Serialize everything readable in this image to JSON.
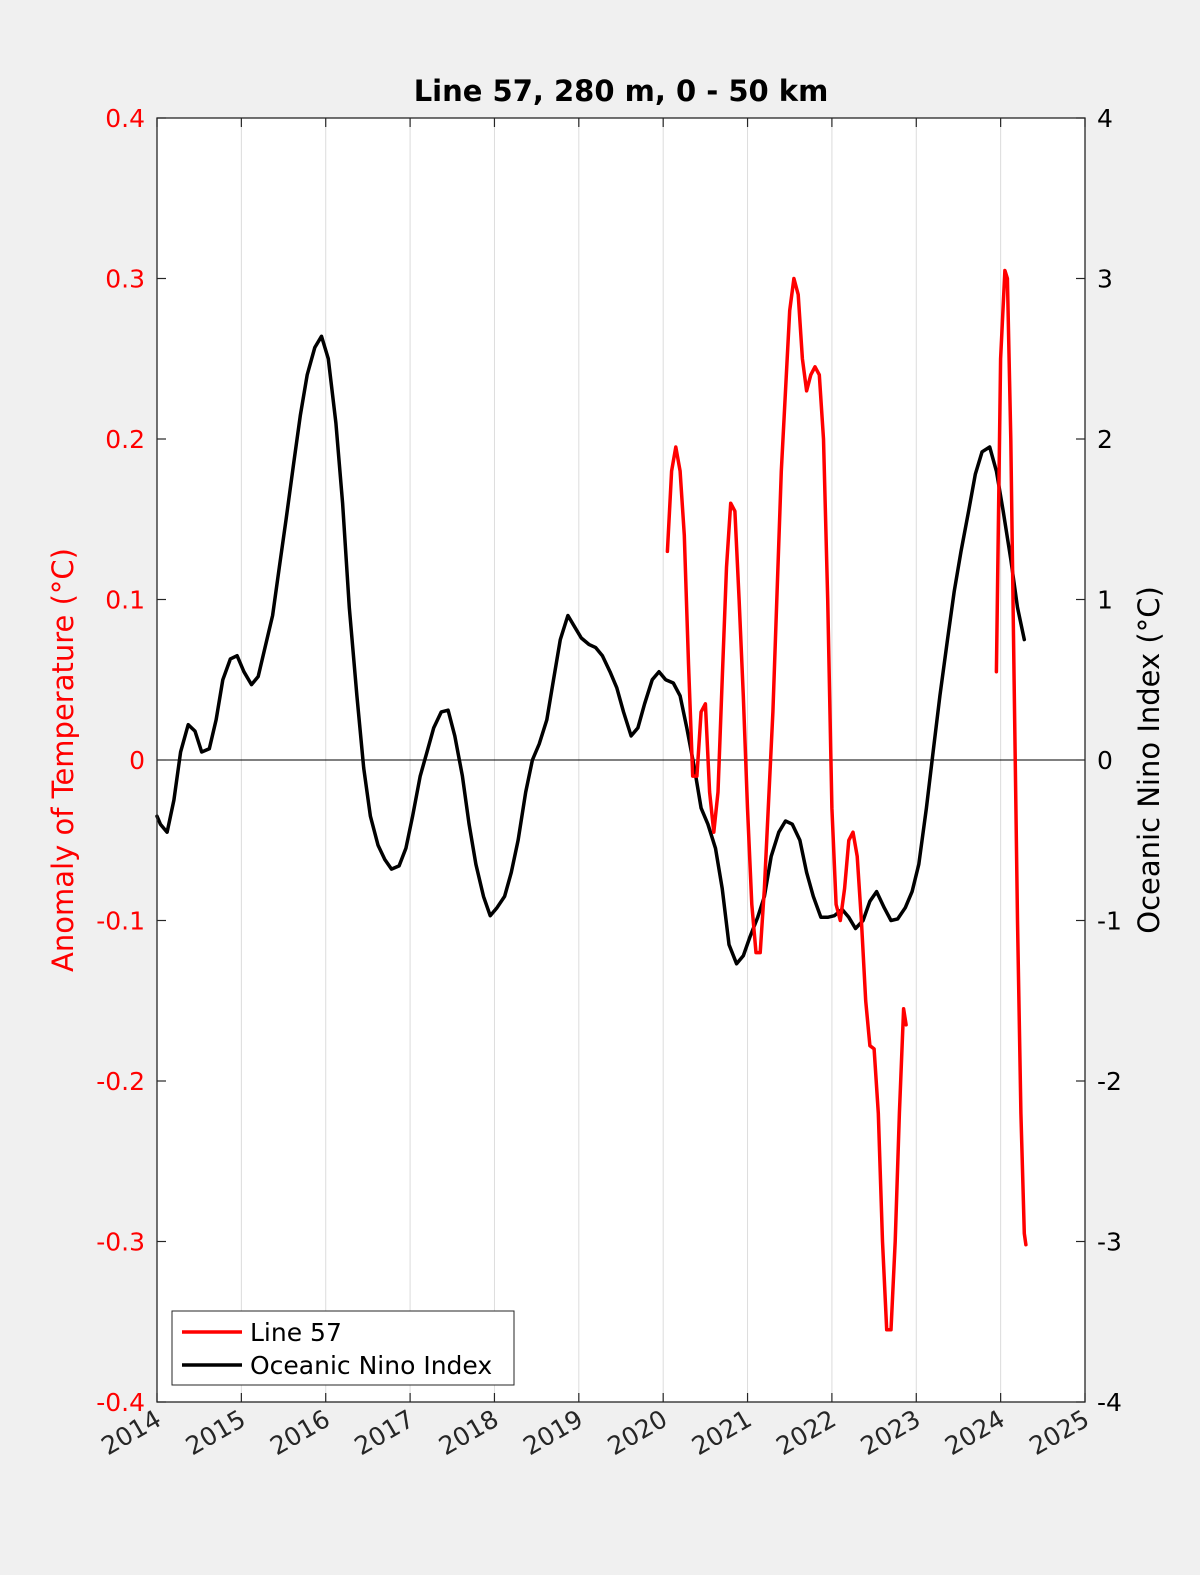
{
  "chart_data": {
    "type": "line",
    "title": "Line 57, 280 m, 0 - 50 km",
    "x_ticks": [
      "2014",
      "2015",
      "2016",
      "2017",
      "2018",
      "2019",
      "2020",
      "2021",
      "2022",
      "2023",
      "2024",
      "2025"
    ],
    "xlim": [
      2014,
      2025
    ],
    "y_left": {
      "label": "Anomaly of Temperature (°C)",
      "ticks": [
        "-0.4",
        "-0.3",
        "-0.2",
        "-0.1",
        "0",
        "0.1",
        "0.2",
        "0.3",
        "0.4"
      ],
      "ylim": [
        -0.4,
        0.4
      ],
      "color": "#ff0000"
    },
    "y_right": {
      "label": "Oceanic Nino Index (°C)",
      "ticks": [
        "-4",
        "-3",
        "-2",
        "-1",
        "0",
        "1",
        "2",
        "3",
        "4"
      ],
      "ylim": [
        -4,
        4
      ],
      "color": "#000000"
    },
    "grid": "vertical",
    "zero_line": true,
    "legend_position": "bottom-left",
    "series": [
      {
        "name": "Line 57",
        "axis": "left",
        "color": "#ff0000",
        "segments": [
          [
            [
              2020.05,
              0.13
            ],
            [
              2020.1,
              0.18
            ],
            [
              2020.15,
              0.195
            ],
            [
              2020.2,
              0.18
            ],
            [
              2020.25,
              0.14
            ],
            [
              2020.3,
              0.06
            ],
            [
              2020.35,
              -0.01
            ],
            [
              2020.4,
              -0.01
            ],
            [
              2020.45,
              0.03
            ],
            [
              2020.5,
              0.035
            ],
            [
              2020.55,
              -0.02
            ],
            [
              2020.6,
              -0.045
            ],
            [
              2020.65,
              -0.02
            ],
            [
              2020.7,
              0.05
            ],
            [
              2020.75,
              0.12
            ],
            [
              2020.8,
              0.16
            ],
            [
              2020.85,
              0.155
            ],
            [
              2020.9,
              0.1
            ],
            [
              2020.95,
              0.04
            ],
            [
              2021.0,
              -0.03
            ],
            [
              2021.05,
              -0.09
            ],
            [
              2021.1,
              -0.12
            ],
            [
              2021.15,
              -0.12
            ],
            [
              2021.2,
              -0.08
            ],
            [
              2021.3,
              0.03
            ],
            [
              2021.4,
              0.18
            ],
            [
              2021.5,
              0.28
            ],
            [
              2021.55,
              0.3
            ],
            [
              2021.6,
              0.29
            ],
            [
              2021.65,
              0.25
            ],
            [
              2021.7,
              0.23
            ],
            [
              2021.75,
              0.24
            ],
            [
              2021.8,
              0.245
            ],
            [
              2021.85,
              0.24
            ],
            [
              2021.9,
              0.2
            ],
            [
              2021.95,
              0.1
            ],
            [
              2022.0,
              -0.03
            ],
            [
              2022.05,
              -0.09
            ],
            [
              2022.1,
              -0.1
            ],
            [
              2022.15,
              -0.08
            ],
            [
              2022.2,
              -0.05
            ],
            [
              2022.25,
              -0.045
            ],
            [
              2022.3,
              -0.06
            ],
            [
              2022.35,
              -0.1
            ],
            [
              2022.4,
              -0.15
            ],
            [
              2022.45,
              -0.178
            ],
            [
              2022.5,
              -0.18
            ],
            [
              2022.55,
              -0.22
            ],
            [
              2022.6,
              -0.3
            ],
            [
              2022.65,
              -0.355
            ],
            [
              2022.7,
              -0.355
            ],
            [
              2022.75,
              -0.3
            ],
            [
              2022.8,
              -0.22
            ],
            [
              2022.85,
              -0.155
            ],
            [
              2022.88,
              -0.165
            ]
          ],
          [
            [
              2023.95,
              0.055
            ],
            [
              2024.0,
              0.25
            ],
            [
              2024.05,
              0.305
            ],
            [
              2024.08,
              0.3
            ],
            [
              2024.12,
              0.2
            ],
            [
              2024.16,
              0.05
            ],
            [
              2024.2,
              -0.1
            ],
            [
              2024.24,
              -0.22
            ],
            [
              2024.28,
              -0.295
            ],
            [
              2024.3,
              -0.302
            ]
          ]
        ]
      },
      {
        "name": "Oceanic Nino Index",
        "axis": "right",
        "color": "#000000",
        "segments": [
          [
            [
              2014.0,
              -0.35
            ],
            [
              2014.04,
              -0.4
            ],
            [
              2014.12,
              -0.45
            ],
            [
              2014.2,
              -0.25
            ],
            [
              2014.28,
              0.05
            ],
            [
              2014.37,
              0.22
            ],
            [
              2014.45,
              0.18
            ],
            [
              2014.53,
              0.05
            ],
            [
              2014.62,
              0.07
            ],
            [
              2014.7,
              0.25
            ],
            [
              2014.78,
              0.5
            ],
            [
              2014.87,
              0.63
            ],
            [
              2014.95,
              0.65
            ],
            [
              2015.03,
              0.55
            ],
            [
              2015.12,
              0.47
            ],
            [
              2015.2,
              0.52
            ],
            [
              2015.28,
              0.7
            ],
            [
              2015.37,
              0.9
            ],
            [
              2015.45,
              1.2
            ],
            [
              2015.53,
              1.5
            ],
            [
              2015.62,
              1.85
            ],
            [
              2015.7,
              2.15
            ],
            [
              2015.78,
              2.4
            ],
            [
              2015.87,
              2.57
            ],
            [
              2015.95,
              2.64
            ],
            [
              2016.03,
              2.5
            ],
            [
              2016.12,
              2.1
            ],
            [
              2016.2,
              1.6
            ],
            [
              2016.28,
              0.95
            ],
            [
              2016.37,
              0.4
            ],
            [
              2016.45,
              -0.05
            ],
            [
              2016.53,
              -0.35
            ],
            [
              2016.62,
              -0.53
            ],
            [
              2016.7,
              -0.62
            ],
            [
              2016.78,
              -0.68
            ],
            [
              2016.87,
              -0.66
            ],
            [
              2016.95,
              -0.55
            ],
            [
              2017.03,
              -0.35
            ],
            [
              2017.12,
              -0.1
            ],
            [
              2017.2,
              0.05
            ],
            [
              2017.28,
              0.2
            ],
            [
              2017.37,
              0.3
            ],
            [
              2017.45,
              0.31
            ],
            [
              2017.53,
              0.15
            ],
            [
              2017.62,
              -0.1
            ],
            [
              2017.7,
              -0.4
            ],
            [
              2017.78,
              -0.65
            ],
            [
              2017.87,
              -0.85
            ],
            [
              2017.95,
              -0.97
            ],
            [
              2018.03,
              -0.92
            ],
            [
              2018.12,
              -0.85
            ],
            [
              2018.2,
              -0.7
            ],
            [
              2018.28,
              -0.5
            ],
            [
              2018.37,
              -0.2
            ],
            [
              2018.45,
              0.0
            ],
            [
              2018.53,
              0.1
            ],
            [
              2018.62,
              0.25
            ],
            [
              2018.7,
              0.5
            ],
            [
              2018.78,
              0.75
            ],
            [
              2018.87,
              0.9
            ],
            [
              2018.95,
              0.83
            ],
            [
              2019.03,
              0.76
            ],
            [
              2019.12,
              0.72
            ],
            [
              2019.2,
              0.7
            ],
            [
              2019.28,
              0.65
            ],
            [
              2019.37,
              0.55
            ],
            [
              2019.45,
              0.45
            ],
            [
              2019.53,
              0.3
            ],
            [
              2019.62,
              0.15
            ],
            [
              2019.7,
              0.2
            ],
            [
              2019.78,
              0.35
            ],
            [
              2019.87,
              0.5
            ],
            [
              2019.95,
              0.55
            ],
            [
              2020.03,
              0.5
            ],
            [
              2020.12,
              0.48
            ],
            [
              2020.2,
              0.4
            ],
            [
              2020.28,
              0.2
            ],
            [
              2020.37,
              -0.05
            ],
            [
              2020.45,
              -0.3
            ],
            [
              2020.53,
              -0.4
            ],
            [
              2020.62,
              -0.55
            ],
            [
              2020.7,
              -0.8
            ],
            [
              2020.78,
              -1.15
            ],
            [
              2020.87,
              -1.27
            ],
            [
              2020.95,
              -1.22
            ],
            [
              2021.03,
              -1.1
            ],
            [
              2021.12,
              -0.98
            ],
            [
              2021.2,
              -0.85
            ],
            [
              2021.28,
              -0.6
            ],
            [
              2021.37,
              -0.45
            ],
            [
              2021.45,
              -0.38
            ],
            [
              2021.53,
              -0.4
            ],
            [
              2021.62,
              -0.5
            ],
            [
              2021.7,
              -0.7
            ],
            [
              2021.78,
              -0.85
            ],
            [
              2021.87,
              -0.98
            ],
            [
              2021.95,
              -0.98
            ],
            [
              2022.03,
              -0.97
            ],
            [
              2022.12,
              -0.93
            ],
            [
              2022.2,
              -0.98
            ],
            [
              2022.28,
              -1.05
            ],
            [
              2022.37,
              -1.0
            ],
            [
              2022.45,
              -0.88
            ],
            [
              2022.53,
              -0.82
            ],
            [
              2022.62,
              -0.92
            ],
            [
              2022.7,
              -1.0
            ],
            [
              2022.78,
              -0.99
            ],
            [
              2022.87,
              -0.92
            ],
            [
              2022.95,
              -0.82
            ],
            [
              2023.03,
              -0.65
            ],
            [
              2023.12,
              -0.3
            ],
            [
              2023.2,
              0.05
            ],
            [
              2023.28,
              0.4
            ],
            [
              2023.37,
              0.75
            ],
            [
              2023.45,
              1.05
            ],
            [
              2023.53,
              1.3
            ],
            [
              2023.62,
              1.55
            ],
            [
              2023.7,
              1.78
            ],
            [
              2023.78,
              1.92
            ],
            [
              2023.87,
              1.95
            ],
            [
              2023.95,
              1.8
            ],
            [
              2024.03,
              1.55
            ],
            [
              2024.12,
              1.25
            ],
            [
              2024.2,
              0.95
            ],
            [
              2024.28,
              0.75
            ]
          ]
        ]
      }
    ]
  }
}
